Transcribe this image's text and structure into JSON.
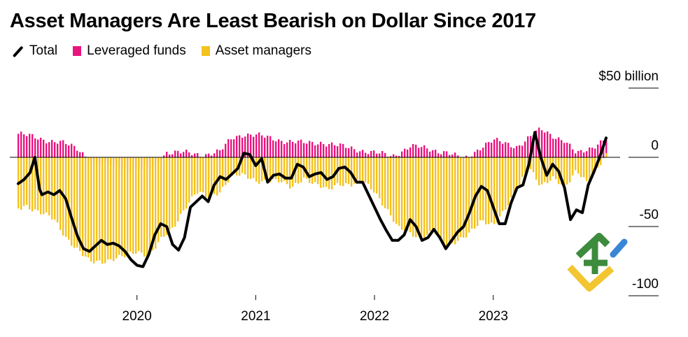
{
  "chart_data": {
    "type": "bar+line",
    "title": "Asset Managers Are Least Bearish on Dollar Since 2017",
    "legend": [
      {
        "name": "Total",
        "kind": "line",
        "color": "#000000"
      },
      {
        "name": "Leveraged funds",
        "kind": "bar",
        "color": "#e8157f"
      },
      {
        "name": "Asset managers",
        "kind": "bar",
        "color": "#f4c21d"
      }
    ],
    "y_unit_label": "$50 billion",
    "y_ticks": [
      {
        "value": 50,
        "label": "$50 billion"
      },
      {
        "value": 0,
        "label": "0"
      },
      {
        "value": -50,
        "label": "-50"
      },
      {
        "value": -100,
        "label": "-100"
      }
    ],
    "ylim": [
      -100,
      50
    ],
    "xlim": [
      2019.0,
      2023.95
    ],
    "x_ticks": [
      {
        "value": 2020.0,
        "label": "2020"
      },
      {
        "value": 2021.0,
        "label": "2021"
      },
      {
        "value": 2022.0,
        "label": "2022"
      },
      {
        "value": 2023.0,
        "label": "2023"
      }
    ],
    "series": [
      {
        "name": "Leveraged funds",
        "x": [
          2019.0,
          2019.15,
          2019.35,
          2019.5,
          2019.65,
          2019.8,
          2019.95,
          2020.1,
          2020.25,
          2020.4,
          2020.55,
          2020.7,
          2020.8,
          2020.9,
          2021.0,
          2021.1,
          2021.25,
          2021.4,
          2021.55,
          2021.7,
          2021.85,
          2022.0,
          2022.15,
          2022.3,
          2022.45,
          2022.6,
          2022.75,
          2022.9,
          2023.0,
          2023.1,
          2023.2,
          2023.3,
          2023.4,
          2023.5,
          2023.6,
          2023.7,
          2023.8,
          2023.95
        ],
        "values": [
          17,
          14,
          11,
          6,
          -4,
          -6,
          -8,
          -9,
          4,
          3,
          2,
          4,
          14,
          17,
          16,
          14,
          12,
          10,
          11,
          8,
          6,
          3,
          1,
          8,
          6,
          4,
          -2,
          8,
          12,
          10,
          8,
          14,
          20,
          16,
          12,
          2,
          6,
          14
        ]
      },
      {
        "name": "Asset managers",
        "x": [
          2019.0,
          2019.06,
          2019.12,
          2019.2,
          2019.3,
          2019.4,
          2019.5,
          2019.6,
          2019.7,
          2019.8,
          2019.9,
          2020.0,
          2020.1,
          2020.2,
          2020.3,
          2020.4,
          2020.5,
          2020.6,
          2020.7,
          2020.8,
          2020.9,
          2021.0,
          2021.1,
          2021.2,
          2021.3,
          2021.4,
          2021.5,
          2021.6,
          2021.7,
          2021.8,
          2021.9,
          2022.0,
          2022.1,
          2022.2,
          2022.3,
          2022.4,
          2022.5,
          2022.6,
          2022.7,
          2022.8,
          2022.9,
          2023.0,
          2023.1,
          2023.2,
          2023.3,
          2023.4,
          2023.5,
          2023.6,
          2023.7,
          2023.8,
          2023.95
        ],
        "values": [
          -37,
          -34,
          -37,
          -41,
          -45,
          -57,
          -67,
          -76,
          -75,
          -73,
          -72,
          -68,
          -70,
          -60,
          -52,
          -36,
          -25,
          -30,
          -24,
          -12,
          -14,
          -17,
          -16,
          -18,
          -22,
          -14,
          -20,
          -24,
          -18,
          -20,
          -18,
          -24,
          -37,
          -52,
          -55,
          -57,
          -54,
          -65,
          -59,
          -55,
          -47,
          -48,
          -37,
          -24,
          -6,
          -20,
          -16,
          -22,
          -8,
          -20,
          2
        ]
      },
      {
        "name": "Total",
        "x": [
          2019.0,
          2019.05,
          2019.1,
          2019.14,
          2019.18,
          2019.2,
          2019.25,
          2019.3,
          2019.35,
          2019.4,
          2019.45,
          2019.5,
          2019.55,
          2019.6,
          2019.65,
          2019.7,
          2019.75,
          2019.8,
          2019.85,
          2019.9,
          2019.95,
          2020.0,
          2020.05,
          2020.1,
          2020.15,
          2020.2,
          2020.25,
          2020.3,
          2020.35,
          2020.4,
          2020.45,
          2020.5,
          2020.55,
          2020.6,
          2020.65,
          2020.7,
          2020.75,
          2020.8,
          2020.85,
          2020.9,
          2020.95,
          2021.0,
          2021.05,
          2021.1,
          2021.15,
          2021.2,
          2021.25,
          2021.3,
          2021.35,
          2021.4,
          2021.45,
          2021.5,
          2021.55,
          2021.6,
          2021.65,
          2021.7,
          2021.75,
          2021.8,
          2021.85,
          2021.9,
          2021.95,
          2022.0,
          2022.05,
          2022.1,
          2022.15,
          2022.2,
          2022.25,
          2022.3,
          2022.35,
          2022.4,
          2022.45,
          2022.5,
          2022.55,
          2022.6,
          2022.65,
          2022.7,
          2022.75,
          2022.8,
          2022.85,
          2022.9,
          2022.95,
          2023.0,
          2023.05,
          2023.1,
          2023.15,
          2023.2,
          2023.25,
          2023.3,
          2023.35,
          2023.4,
          2023.45,
          2023.5,
          2023.55,
          2023.6,
          2023.65,
          2023.7,
          2023.75,
          2023.8,
          2023.85,
          2023.9,
          2023.95
        ],
        "values": [
          -19,
          -16,
          -11,
          0,
          -23,
          -27,
          -25,
          -27,
          -24,
          -30,
          -44,
          -57,
          -66,
          -68,
          -64,
          -60,
          -63,
          -62,
          -64,
          -68,
          -74,
          -78,
          -79,
          -70,
          -56,
          -48,
          -50,
          -63,
          -67,
          -58,
          -36,
          -32,
          -28,
          -32,
          -20,
          -14,
          -16,
          -12,
          -8,
          3,
          2,
          -6,
          -1,
          -18,
          -13,
          -12,
          -15,
          -15,
          -5,
          -7,
          -14,
          -12,
          -11,
          -16,
          -14,
          -8,
          -7,
          -11,
          -18,
          -18,
          -27,
          -36,
          -45,
          -53,
          -60,
          -60,
          -56,
          -45,
          -50,
          -60,
          -58,
          -52,
          -58,
          -66,
          -60,
          -54,
          -50,
          -40,
          -28,
          -21,
          -24,
          -36,
          -48,
          -48,
          -33,
          -22,
          -20,
          -5,
          18,
          0,
          -13,
          -5,
          -10,
          -22,
          -45,
          -38,
          -40,
          -20,
          -10,
          1,
          14
        ]
      }
    ]
  }
}
